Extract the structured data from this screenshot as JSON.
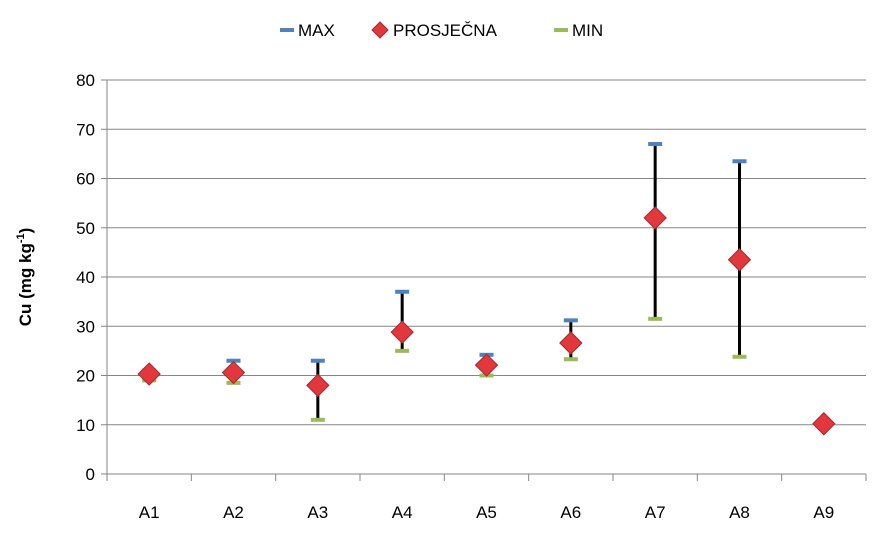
{
  "chart_data": {
    "type": "scatter",
    "subtype": "high-low-average",
    "categories": [
      "A1",
      "A2",
      "A3",
      "A4",
      "A5",
      "A6",
      "A7",
      "A8",
      "A9"
    ],
    "series": [
      {
        "name": "MAX",
        "values": [
          21.0,
          23.0,
          23.0,
          37.0,
          24.2,
          31.2,
          67.0,
          63.5,
          10.0
        ],
        "color": "#4F81BD",
        "marker": "dash"
      },
      {
        "name": "PROSJEČNA",
        "values": [
          20.3,
          20.6,
          18.0,
          28.8,
          22.1,
          26.6,
          52.0,
          43.5,
          10.2
        ],
        "color": "#E0383D",
        "marker": "diamond"
      },
      {
        "name": "MIN",
        "values": [
          19.0,
          18.5,
          11.0,
          25.0,
          20.0,
          23.3,
          31.5,
          23.8,
          9.8
        ],
        "color": "#9BBB59",
        "marker": "dash"
      }
    ],
    "ylabel_main": "Cu (mg kg",
    "ylabel_sup": "-1",
    "ylabel_end": ")",
    "ylim": [
      0,
      80
    ],
    "yticks": [
      0,
      10,
      20,
      30,
      40,
      50,
      60,
      70,
      80
    ],
    "grid": true,
    "legend": "top-center",
    "hi_lo_line_color": "#000000"
  }
}
